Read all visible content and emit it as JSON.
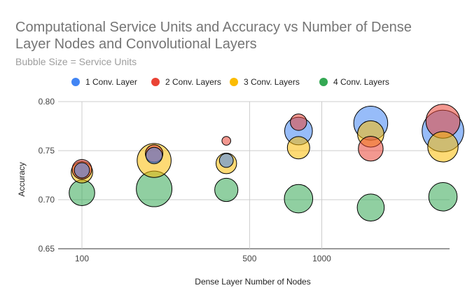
{
  "chart_data": {
    "type": "bubble",
    "title_line1": "Computational Service Units and Accuracy vs Number of Dense",
    "title_line2": "Layer Nodes and Convolutional Layers",
    "subtitle": "Bubble Size = Service Units",
    "xlabel": "Dense Layer Number of Nodes",
    "ylabel": "Accuracy",
    "x_scale": "log",
    "x_ticks": [
      {
        "value": 100,
        "label": "100"
      },
      {
        "value": 500,
        "label": "500"
      },
      {
        "value": 1000,
        "label": "1000"
      }
    ],
    "y_ticks": [
      {
        "value": 0.65,
        "label": "0.65"
      },
      {
        "value": 0.7,
        "label": "0.70"
      },
      {
        "value": 0.75,
        "label": "0.75"
      },
      {
        "value": 0.8,
        "label": "0.80"
      }
    ],
    "ylim": [
      0.65,
      0.8
    ],
    "legend_position": "top",
    "series": [
      {
        "name": "1 Conv. Layer",
        "color": "#4285f4",
        "points": [
          {
            "x": 100,
            "y": 0.73,
            "size": 6
          },
          {
            "x": 200,
            "y": 0.745,
            "size": 7
          },
          {
            "x": 400,
            "y": 0.74,
            "size": 5
          },
          {
            "x": 800,
            "y": 0.77,
            "size": 20
          },
          {
            "x": 1600,
            "y": 0.778,
            "size": 30
          },
          {
            "x": 3200,
            "y": 0.77,
            "size": 45
          }
        ]
      },
      {
        "name": "2 Conv. Layers",
        "color": "#ea4335",
        "points": [
          {
            "x": 100,
            "y": 0.731,
            "size": 10
          },
          {
            "x": 200,
            "y": 0.747,
            "size": 8
          },
          {
            "x": 400,
            "y": 0.76,
            "size": 2
          },
          {
            "x": 800,
            "y": 0.779,
            "size": 7
          },
          {
            "x": 1600,
            "y": 0.752,
            "size": 16
          },
          {
            "x": 3200,
            "y": 0.78,
            "size": 30
          }
        ]
      },
      {
        "name": "3 Conv. Layers",
        "color": "#fbbc04",
        "points": [
          {
            "x": 100,
            "y": 0.728,
            "size": 12
          },
          {
            "x": 200,
            "y": 0.74,
            "size": 30
          },
          {
            "x": 400,
            "y": 0.737,
            "size": 11
          },
          {
            "x": 800,
            "y": 0.753,
            "size": 13
          },
          {
            "x": 1600,
            "y": 0.767,
            "size": 18
          },
          {
            "x": 3200,
            "y": 0.754,
            "size": 24
          }
        ]
      },
      {
        "name": "4 Conv. Layers",
        "color": "#34a853",
        "points": [
          {
            "x": 100,
            "y": 0.707,
            "size": 17
          },
          {
            "x": 200,
            "y": 0.711,
            "size": 33
          },
          {
            "x": 400,
            "y": 0.71,
            "size": 14
          },
          {
            "x": 800,
            "y": 0.701,
            "size": 21
          },
          {
            "x": 1600,
            "y": 0.692,
            "size": 19
          },
          {
            "x": 3200,
            "y": 0.703,
            "size": 21
          }
        ]
      }
    ]
  }
}
